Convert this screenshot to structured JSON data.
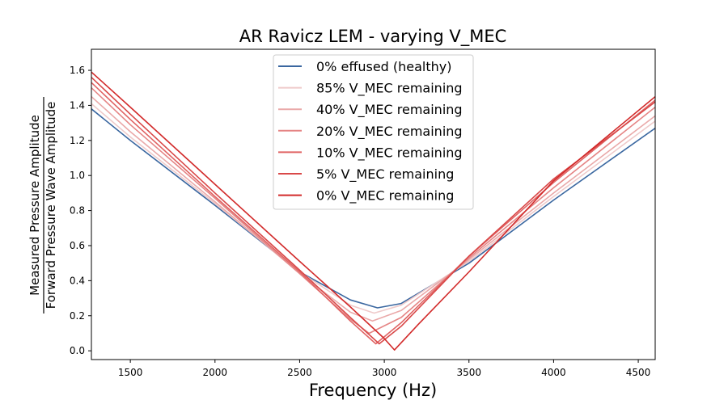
{
  "chart_data": {
    "type": "line",
    "title": "AR Ravicz LEM - varying V_MEC",
    "xlabel": "Frequency (Hz)",
    "ylabel_numerator": "Measured Pressure Amplitude",
    "ylabel_denominator": "Forward Pressure Wave Amplitude",
    "xlim": [
      1270,
      4600
    ],
    "ylim": [
      -0.05,
      1.72
    ],
    "xticks": [
      1500,
      2000,
      2500,
      3000,
      3500,
      4000,
      4500
    ],
    "yticks": [
      0.0,
      0.2,
      0.4,
      0.6,
      0.8,
      1.0,
      1.2,
      1.4,
      1.6
    ],
    "legend_position": "top-center",
    "series": [
      {
        "name": "0% effused (healthy)",
        "color": "#3a67a0",
        "x": [
          1270,
          1500,
          2000,
          2500,
          2800,
          2960,
          3100,
          3500,
          4000,
          4600
        ],
        "y": [
          1.38,
          1.2,
          0.83,
          0.45,
          0.29,
          0.245,
          0.27,
          0.5,
          0.86,
          1.27
        ]
      },
      {
        "name": "85% V_MEC remaining",
        "color": "#efcaca",
        "x": [
          1270,
          1500,
          2000,
          2500,
          2800,
          2940,
          3100,
          3500,
          4000,
          4600
        ],
        "y": [
          1.41,
          1.22,
          0.84,
          0.45,
          0.26,
          0.215,
          0.26,
          0.51,
          0.88,
          1.31
        ]
      },
      {
        "name": "40% V_MEC remaining",
        "color": "#eaa9a9",
        "x": [
          1270,
          1500,
          2000,
          2500,
          2800,
          2930,
          3100,
          3500,
          4000,
          4600
        ],
        "y": [
          1.45,
          1.25,
          0.85,
          0.44,
          0.22,
          0.17,
          0.23,
          0.52,
          0.9,
          1.34
        ]
      },
      {
        "name": "20% V_MEC remaining",
        "color": "#e58585",
        "x": [
          1270,
          1500,
          2000,
          2500,
          2800,
          2910,
          3100,
          3500,
          4000,
          4600
        ],
        "y": [
          1.5,
          1.29,
          0.87,
          0.44,
          0.18,
          0.1,
          0.19,
          0.53,
          0.93,
          1.39
        ]
      },
      {
        "name": "10% V_MEC remaining",
        "color": "#e06464",
        "x": [
          1270,
          1500,
          2000,
          2500,
          2800,
          2950,
          3100,
          3500,
          4000,
          4600
        ],
        "y": [
          1.53,
          1.32,
          0.88,
          0.45,
          0.17,
          0.04,
          0.16,
          0.54,
          0.96,
          1.43
        ]
      },
      {
        "name": "5% V_MEC remaining",
        "color": "#d94848",
        "x": [
          1270,
          1500,
          2000,
          2500,
          2800,
          2970,
          3100,
          3500,
          4000,
          4600
        ],
        "y": [
          1.56,
          1.35,
          0.9,
          0.46,
          0.19,
          0.04,
          0.14,
          0.54,
          0.98,
          1.42
        ]
      },
      {
        "name": "0% V_MEC remaining",
        "color": "#d22a2a",
        "x": [
          1270,
          1500,
          2000,
          2500,
          2800,
          3000,
          3060,
          3200,
          3500,
          4000,
          4600
        ],
        "y": [
          1.59,
          1.39,
          0.95,
          0.51,
          0.25,
          0.07,
          0.005,
          0.15,
          0.45,
          0.97,
          1.45
        ]
      }
    ]
  }
}
